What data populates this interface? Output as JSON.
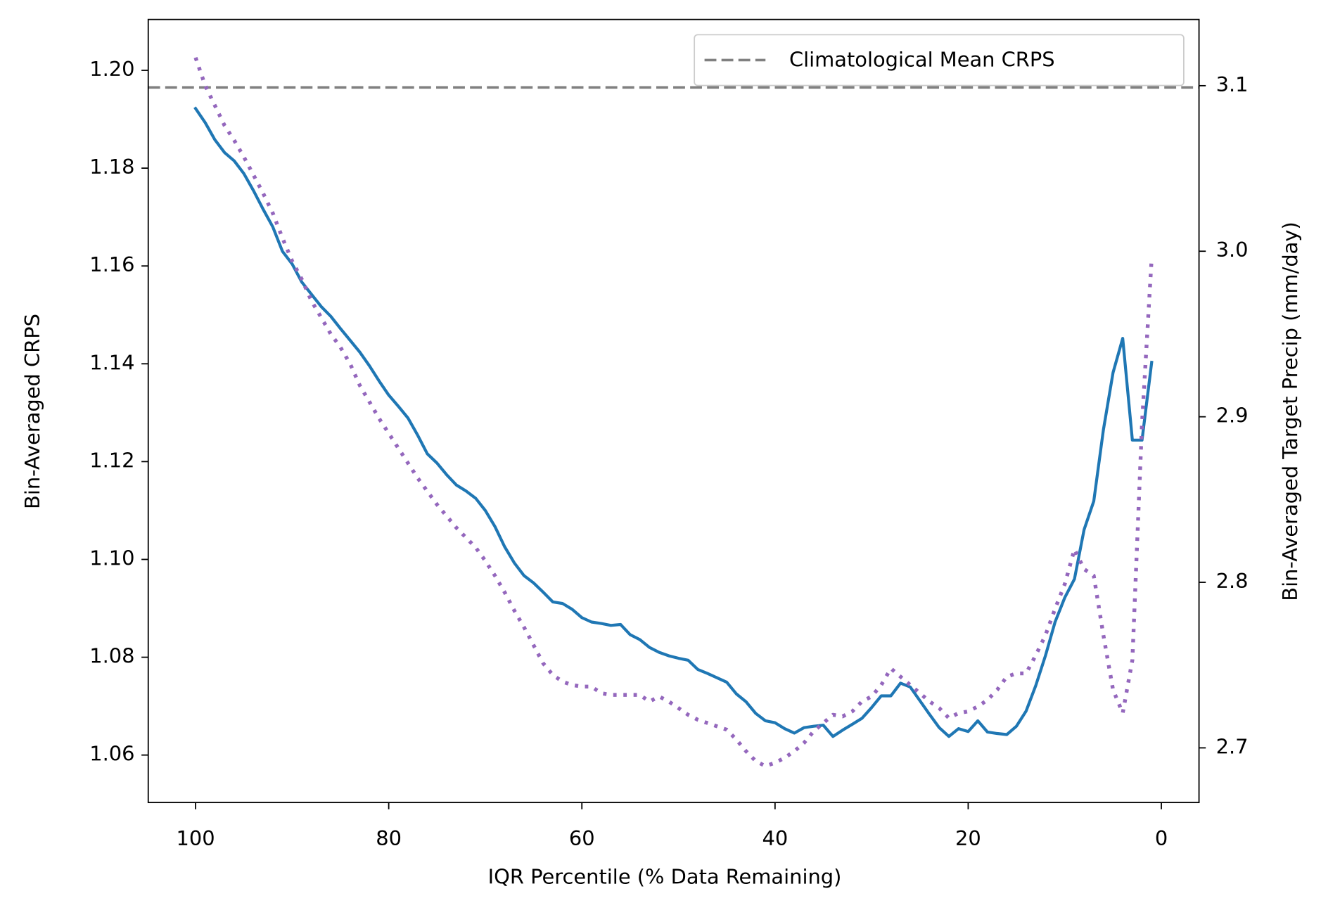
{
  "chart_data": {
    "type": "line",
    "x_label": "IQR Percentile (% Data Remaining)",
    "y_label": "Bin-Averaged CRPS",
    "y2_label": "Bin-Averaged Target Precip (mm/day)",
    "y_color": "#1f77b4",
    "y2_color": "#9467bd",
    "x": [
      100,
      99,
      98,
      97,
      96,
      95,
      94,
      93,
      92,
      91,
      90,
      89,
      88,
      87,
      86,
      85,
      84,
      83,
      82,
      81,
      80,
      79,
      78,
      77,
      76,
      75,
      74,
      73,
      72,
      71,
      70,
      69,
      68,
      67,
      66,
      65,
      64,
      63,
      62,
      61,
      60,
      59,
      58,
      57,
      56,
      55,
      54,
      53,
      52,
      51,
      50,
      49,
      48,
      47,
      46,
      45,
      44,
      43,
      42,
      41,
      40,
      39,
      38,
      37,
      36,
      35,
      34,
      33,
      32,
      31,
      30,
      29,
      28,
      27,
      26,
      25,
      24,
      23,
      22,
      21,
      20,
      19,
      18,
      17,
      16,
      15,
      14,
      13,
      12,
      11,
      10,
      9,
      8,
      7,
      6,
      5,
      4,
      3,
      2,
      1
    ],
    "series": [
      {
        "color": "#1f77b4",
        "style": "solid",
        "values": [
          1.1922,
          1.1893,
          1.1858,
          1.1832,
          1.1815,
          1.1789,
          1.1754,
          1.1716,
          1.168,
          1.163,
          1.1604,
          1.1567,
          1.1542,
          1.1517,
          1.1497,
          1.1472,
          1.1448,
          1.1424,
          1.1396,
          1.1365,
          1.1336,
          1.1313,
          1.1289,
          1.1254,
          1.1216,
          1.1197,
          1.1173,
          1.1152,
          1.114,
          1.1125,
          1.11,
          1.1067,
          1.1026,
          1.0993,
          1.0967,
          1.0952,
          1.0933,
          1.0913,
          1.091,
          1.0898,
          1.0881,
          1.0872,
          1.0869,
          1.0865,
          1.0867,
          1.0846,
          1.0836,
          1.082,
          1.081,
          1.0803,
          1.0798,
          1.0794,
          1.0775,
          1.0767,
          1.0758,
          1.0749,
          1.0725,
          1.0709,
          1.0685,
          1.067,
          1.0666,
          1.0654,
          1.0645,
          1.0656,
          1.0659,
          1.0661,
          1.0638,
          1.0651,
          1.0663,
          1.0675,
          1.0697,
          1.0721,
          1.0721,
          1.0747,
          1.0739,
          1.0711,
          1.0683,
          1.0656,
          1.0638,
          1.0654,
          1.0648,
          1.067,
          1.0647,
          1.0644,
          1.0642,
          1.0659,
          1.069,
          1.0742,
          1.0803,
          1.0872,
          1.0922,
          1.096,
          1.1061,
          1.1119,
          1.1265,
          1.1382,
          1.1452,
          1.1244,
          1.1244,
          1.1403
        ]
      },
      {
        "color": "#9467bd",
        "style": "dotted",
        "axis": "y2",
        "values": [
          3.117,
          3.1,
          3.088,
          3.076,
          3.067,
          3.057,
          3.046,
          3.035,
          3.023,
          3.008,
          2.994,
          2.983,
          2.97,
          2.96,
          2.95,
          2.942,
          2.932,
          2.919,
          2.909,
          2.899,
          2.89,
          2.881,
          2.872,
          2.863,
          2.855,
          2.847,
          2.84,
          2.833,
          2.827,
          2.821,
          2.813,
          2.804,
          2.794,
          2.783,
          2.773,
          2.762,
          2.751,
          2.744,
          2.74,
          2.738,
          2.737,
          2.737,
          2.733,
          2.732,
          2.732,
          2.732,
          2.732,
          2.728,
          2.731,
          2.728,
          2.724,
          2.72,
          2.717,
          2.715,
          2.713,
          2.711,
          2.705,
          2.698,
          2.692,
          2.689,
          2.691,
          2.694,
          2.698,
          2.703,
          2.71,
          2.715,
          2.72,
          2.719,
          2.722,
          2.728,
          2.731,
          2.738,
          2.748,
          2.743,
          2.738,
          2.733,
          2.728,
          2.724,
          2.718,
          2.721,
          2.722,
          2.725,
          2.729,
          2.735,
          2.743,
          2.745,
          2.745,
          2.756,
          2.768,
          2.784,
          2.799,
          2.82,
          2.808,
          2.804,
          2.768,
          2.735,
          2.721,
          2.753,
          2.896,
          2.996
        ]
      }
    ],
    "reference_line": {
      "name": "Climatological Mean CRPS",
      "value": 1.1965,
      "color": "#808080",
      "style": "dashed"
    },
    "xlim": [
      104.9,
      -3.9
    ],
    "xticks": [
      100,
      80,
      60,
      40,
      20,
      0
    ],
    "ylim": [
      1.0503,
      1.2104
    ],
    "yticks": [
      1.06,
      1.08,
      {
        "value": 1.1,
        "label": "1.10"
      },
      1.12,
      1.14,
      1.16,
      1.18,
      {
        "value": 1.2,
        "label": "1.20"
      }
    ],
    "y2lim": [
      2.667,
      3.14
    ],
    "y2ticks": [
      2.7,
      2.8,
      2.9,
      {
        "value": 3.0,
        "label": "3.0"
      },
      3.1
    ],
    "legend": "upper right"
  }
}
